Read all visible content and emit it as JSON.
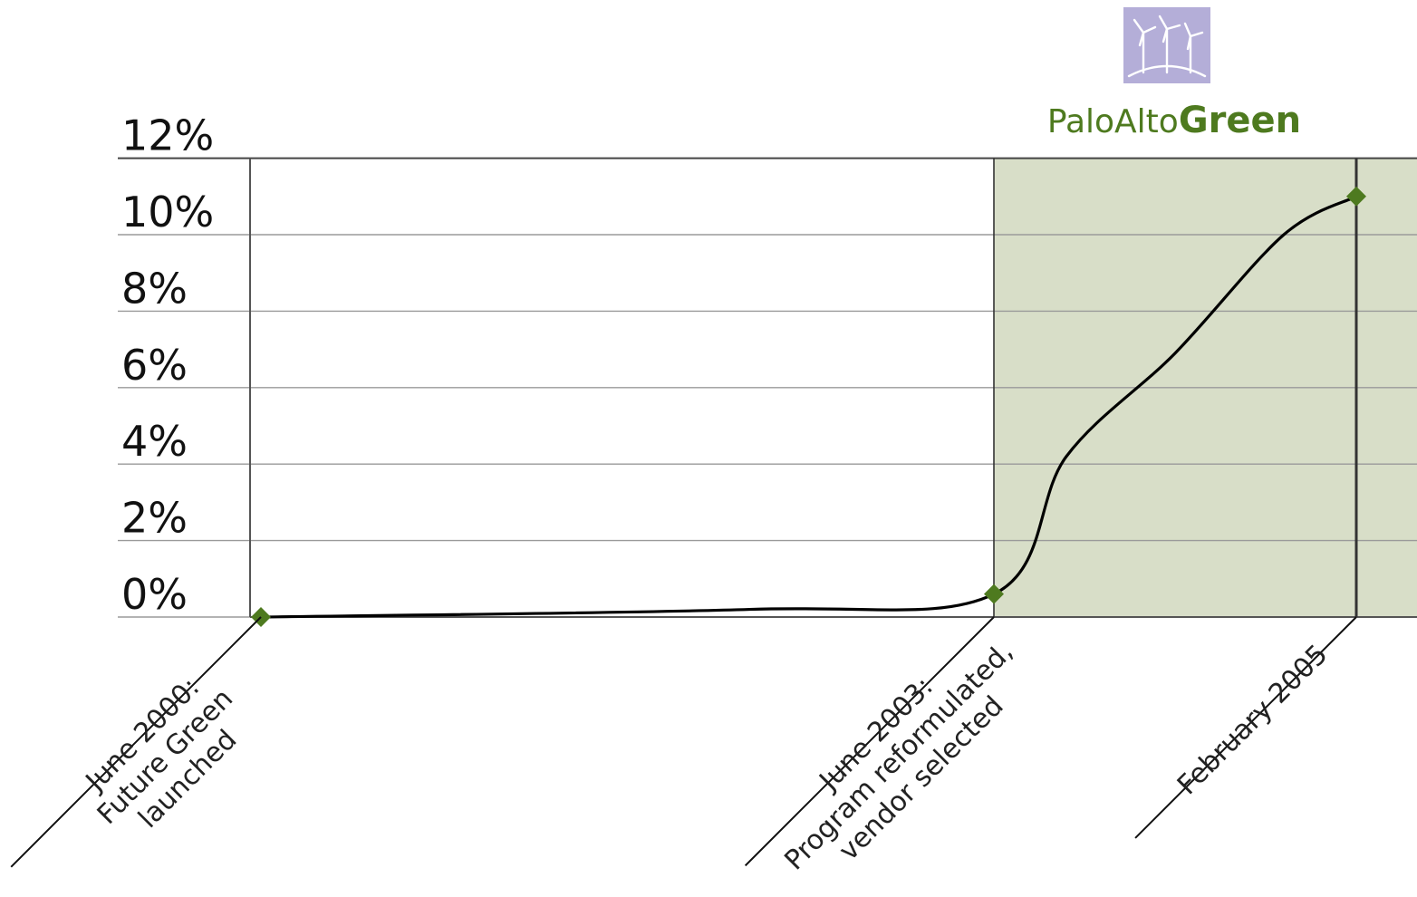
{
  "logo": {
    "text_light": "PaloAlto",
    "text_bold": "Green",
    "color": "#4e7a1f",
    "badge_color": "#b4aed8",
    "icon": "wind-turbines-icon"
  },
  "chart_data": {
    "type": "line",
    "title": "",
    "xlabel": "",
    "ylabel": "",
    "ylim": [
      -0.5,
      12
    ],
    "yticks": [
      0,
      2,
      4,
      6,
      8,
      10,
      12
    ],
    "ytick_labels": [
      "0%",
      "2%",
      "4%",
      "6%",
      "8%",
      "10%",
      "12%"
    ],
    "grid": true,
    "line_color": "#000000",
    "marker_color": "#4e7a1f",
    "shaded_region_color": "#d8dec8",
    "series": [
      {
        "points": [
          {
            "x": "2000-06",
            "y": 0.0
          },
          {
            "x": "2002-06",
            "y": 0.2
          },
          {
            "x": "2003-06",
            "y": 0.6
          },
          {
            "x": "2003-10",
            "y": 4.2
          },
          {
            "x": "2004-04",
            "y": 6.9
          },
          {
            "x": "2004-10",
            "y": 10.0
          },
          {
            "x": "2005-02",
            "y": 11.0
          }
        ],
        "markers": [
          {
            "x": "2000-06",
            "y": 0.0
          },
          {
            "x": "2003-06",
            "y": 0.6
          },
          {
            "x": "2005-02",
            "y": 11.0
          }
        ]
      }
    ],
    "milestones": [
      {
        "x": "2000-06",
        "lines": [
          "June 2000:",
          "Future Green",
          "launched"
        ]
      },
      {
        "x": "2003-06",
        "lines": [
          "June 2003:",
          "Program reformulated,",
          "vendor selected"
        ]
      },
      {
        "x": "2005-02",
        "lines": [
          "February 2005"
        ]
      }
    ]
  }
}
